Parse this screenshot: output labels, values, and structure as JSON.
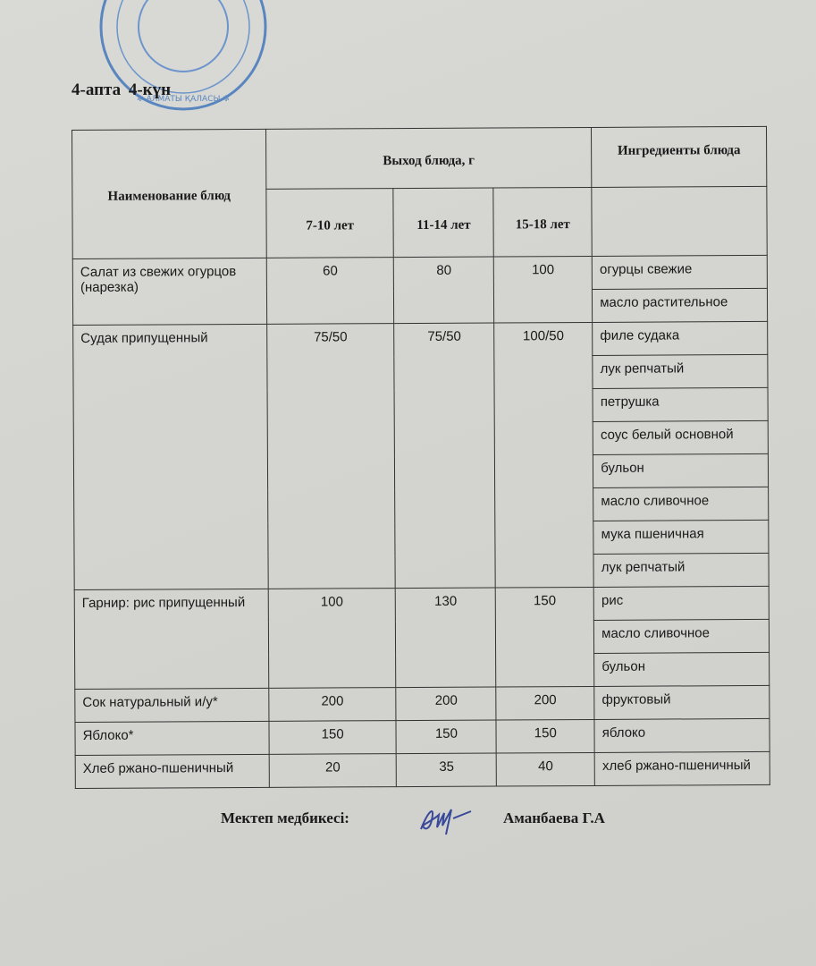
{
  "stamp": {
    "text": "АЛМАТЫ КАЛАСЫ ТЕК ҚЕҢЕСІ",
    "color": "#5a86c0"
  },
  "heading": "4-апта  4-күн",
  "table": {
    "headers": {
      "dish": "Наименование блюд",
      "yield": "Выход блюда, г",
      "ingredients": "Ингредиенты блюда",
      "ages": [
        "7-10 лет",
        "11-14 лет",
        "15-18 лет"
      ]
    },
    "rows": [
      {
        "dish": "Салат из свежих огурцов (нарезка)",
        "values": [
          "60",
          "80",
          "100"
        ],
        "ingredients": [
          "огурцы свежие",
          "масло растительное"
        ]
      },
      {
        "dish": "Судак припущенный",
        "values": [
          "75/50",
          "75/50",
          "100/50"
        ],
        "ingredients": [
          "филе судака",
          "лук репчатый",
          "петрушка",
          "соус белый основной",
          "бульон",
          "масло сливочное",
          "мука пшеничная",
          "лук репчатый"
        ]
      },
      {
        "dish": "Гарнир: рис припущенный",
        "values": [
          "100",
          "130",
          "150"
        ],
        "ingredients": [
          "рис",
          "масло сливочное",
          "бульон"
        ]
      },
      {
        "dish": "Сок натуральный и/у*",
        "values": [
          "200",
          "200",
          "200"
        ],
        "ingredients": [
          "фруктовый"
        ]
      },
      {
        "dish": "Яблоко*",
        "values": [
          "150",
          "150",
          "150"
        ],
        "ingredients": [
          "яблоко"
        ]
      },
      {
        "dish": "Хлеб ржано-пшеничный",
        "values": [
          "20",
          "35",
          "40"
        ],
        "ingredients": [
          "хлеб ржано-пшеничный"
        ]
      }
    ]
  },
  "footer": {
    "label": "Мектеп медбикесі:",
    "name": "Аманбаева Г.А"
  }
}
